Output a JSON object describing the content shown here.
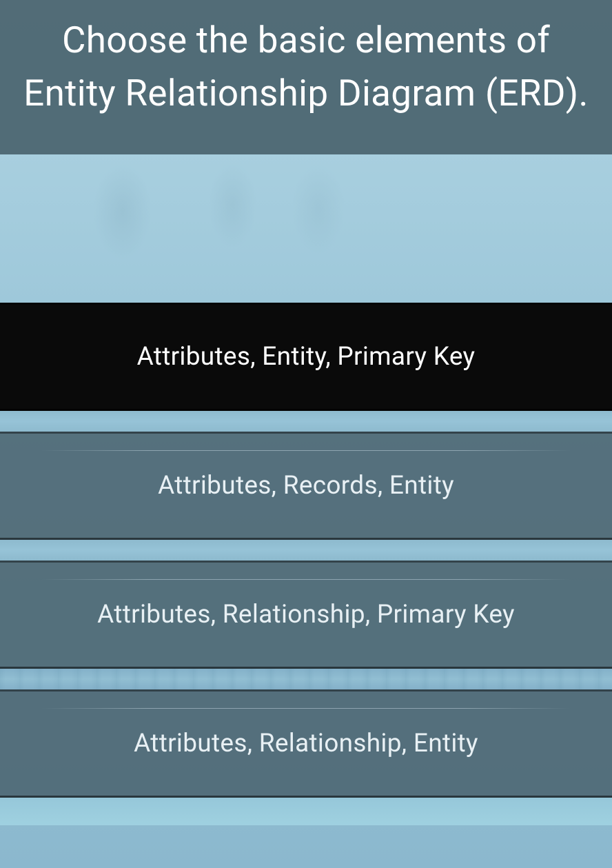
{
  "question": {
    "title": "Choose the basic elements of Entity Relationship Diagram (ERD)."
  },
  "options": [
    {
      "label": "Attributes, Entity, Primary Key",
      "selected": true
    },
    {
      "label": "Attributes, Records, Entity",
      "selected": false
    },
    {
      "label": "Attributes, Relationship, Primary Key",
      "selected": false
    },
    {
      "label": "Attributes, Relationship, Entity",
      "selected": false
    }
  ],
  "colors": {
    "header_bg": "rgba(70, 95, 105, 0.88)",
    "selected_bg": "#0a0a0a",
    "unselected_bg": "rgba(75, 100, 112, 0.88)",
    "text": "#ffffff",
    "body_gradient_start": "#a8cfdf",
    "body_gradient_end": "#8bb8ce"
  },
  "typography": {
    "title_fontsize": 53,
    "option_fontsize": 37
  }
}
